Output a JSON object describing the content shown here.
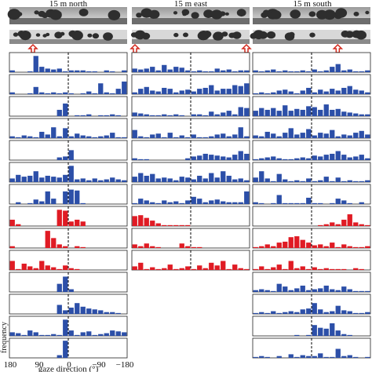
{
  "figure": {
    "columns": [
      "15 m north",
      "15 m east",
      "15 m south"
    ],
    "x_tick_labels": [
      "180",
      "90",
      "0",
      "−90",
      "−180"
    ],
    "xlabel": "gaze direction (°)",
    "ylabel": "frequency",
    "arrow_color": "#d42a1e",
    "blue_color": "#2c4fa8",
    "red_color": "#e01b24",
    "panorama_colors": {
      "sky_top": "#9a9a9a",
      "sky_bottom": "#e3e3e3",
      "canopy": "#2e2e2e",
      "ground": "#6d6d6d"
    }
  },
  "chart_data": {
    "type": "bar",
    "x_range": [
      180,
      -180
    ],
    "bins_per_panel": 20,
    "grid": false,
    "zero_line": "dashed vertical at 0°",
    "columns": [
      {
        "name": "15 m north",
        "arrows_deg": [
          108
        ],
        "panels": [
          {
            "color": "blue",
            "values": [
              0.1,
              0,
              0,
              0.05,
              0.9,
              0.3,
              0.2,
              0.15,
              0.2,
              0.05,
              0.1,
              0.1,
              0.1,
              0.05,
              0.05,
              0,
              0.1,
              0.05,
              0,
              0.1
            ]
          },
          {
            "color": "blue",
            "values": [
              0.1,
              0,
              0,
              0.05,
              0.4,
              0.1,
              0.05,
              0.1,
              0.05,
              0.1,
              0.05,
              0,
              0.05,
              0.15,
              0.05,
              0.6,
              0.1,
              0.05,
              0.3,
              0.7
            ]
          },
          {
            "color": "blue",
            "values": [
              0,
              0,
              0,
              0,
              0,
              0,
              0,
              0,
              0.35,
              0.7,
              0,
              0.05,
              0.05,
              0.1,
              0,
              0.05,
              0.05,
              0.1,
              0.05,
              0
            ]
          },
          {
            "color": "blue",
            "values": [
              0.1,
              0.05,
              0.15,
              0.1,
              0.05,
              0.35,
              0.2,
              0.6,
              0.1,
              0.55,
              0.1,
              0.25,
              0.15,
              0.1,
              0.05,
              0.1,
              0.15,
              0.3,
              0.05,
              0.05
            ]
          },
          {
            "color": "blue",
            "values": [
              0,
              0,
              0,
              0,
              0,
              0,
              0,
              0,
              0.15,
              0.2,
              0.55,
              0,
              0,
              0,
              0,
              0,
              0,
              0,
              0,
              0
            ]
          },
          {
            "color": "blue",
            "values": [
              0.2,
              0.4,
              0.3,
              0.35,
              0.6,
              0.25,
              0.35,
              0.3,
              0.25,
              0.4,
              0.9,
              0.15,
              0.2,
              0.1,
              0.2,
              0.1,
              0.15,
              0.25,
              0.15,
              0.1
            ]
          },
          {
            "color": "blue",
            "values": [
              0,
              0.1,
              0,
              0.05,
              0.25,
              0.15,
              0.7,
              0.3,
              0,
              0.7,
              0.8,
              0.75,
              0.05,
              0,
              0,
              0,
              0,
              0,
              0,
              0
            ]
          },
          {
            "color": "red",
            "values": [
              0.35,
              0.1,
              0,
              0,
              0,
              0,
              0,
              0,
              0.9,
              0.85,
              0.25,
              0.35,
              0.25,
              0,
              0,
              0,
              0,
              0,
              0,
              0
            ]
          },
          {
            "color": "red",
            "values": [
              0.1,
              0,
              0,
              0,
              0,
              0,
              0.95,
              0.55,
              0.2,
              0.1,
              0,
              0.1,
              0.05,
              0,
              0,
              0,
              0,
              0,
              0,
              0
            ]
          },
          {
            "color": "red",
            "values": [
              0.5,
              0.05,
              0.35,
              0.2,
              0.1,
              0.5,
              0.25,
              0.15,
              0.05,
              0.25,
              0.1,
              0.05,
              0,
              0,
              0,
              0,
              0,
              0,
              0,
              0
            ]
          },
          {
            "color": "blue",
            "values": [
              0,
              0,
              0,
              0,
              0,
              0,
              0,
              0,
              0.45,
              0.85,
              0.15,
              0,
              0,
              0,
              0,
              0,
              0,
              0,
              0,
              0
            ]
          },
          {
            "color": "blue",
            "values": [
              0,
              0,
              0,
              0,
              0,
              0,
              0,
              0,
              0.5,
              0.2,
              0.35,
              0.6,
              0.4,
              0.3,
              0.25,
              0.2,
              0.1,
              0.1,
              0.05,
              0
            ]
          },
          {
            "color": "blue",
            "values": [
              0.2,
              0.15,
              0.05,
              0.3,
              0.2,
              0.05,
              0.05,
              0.1,
              0.05,
              0.9,
              0.3,
              0.05,
              0.2,
              0.25,
              0.05,
              0.1,
              0.15,
              0.3,
              0.25,
              0.2
            ]
          },
          {
            "color": "blue",
            "values": [
              0,
              0,
              0,
              0,
              0,
              0,
              0,
              0,
              0.15,
              0.95,
              0,
              0,
              0,
              0,
              0,
              0,
              0,
              0,
              0,
              0
            ]
          }
        ]
      },
      {
        "name": "15 m east",
        "arrows_deg": [
          180,
          -180
        ],
        "panels": [
          {
            "color": "blue",
            "values": [
              0.2,
              0.15,
              0.2,
              0.3,
              0.1,
              0.4,
              0.15,
              0.3,
              0.25,
              0.1,
              0.05,
              0.1,
              0.05,
              0.05,
              0.2,
              0.1,
              0.15,
              0.05,
              0.1,
              0.1
            ]
          },
          {
            "color": "blue",
            "values": [
              0.1,
              0.3,
              0.4,
              0.2,
              0.15,
              0.35,
              0.3,
              0.1,
              0.2,
              0.25,
              0.15,
              0.3,
              0.35,
              0.5,
              0.2,
              0.3,
              0.3,
              0.5,
              0.45,
              0.6
            ]
          },
          {
            "color": "blue",
            "values": [
              0.2,
              0.15,
              0.1,
              0.05,
              0.05,
              0.1,
              0.05,
              0.1,
              0.05,
              0,
              0.1,
              0.1,
              0.05,
              0.25,
              0.1,
              0.2,
              0.3,
              0.1,
              0.5,
              0.45
            ]
          },
          {
            "color": "blue",
            "values": [
              0.45,
              0.1,
              0.05,
              0.2,
              0.25,
              0.05,
              0.3,
              0.05,
              0.15,
              0.05,
              0.2,
              0.05,
              0.05,
              0.1,
              0.2,
              0.25,
              0.1,
              0.2,
              0.6,
              0.1
            ]
          },
          {
            "color": "blue",
            "values": [
              0.1,
              0.05,
              0.05,
              0,
              0,
              0,
              0,
              0,
              0,
              0.1,
              0.2,
              0.25,
              0.35,
              0.3,
              0.25,
              0.2,
              0.15,
              0.3,
              0.5,
              0.35
            ]
          },
          {
            "color": "blue",
            "values": [
              0.3,
              0.5,
              0.35,
              0.45,
              0.2,
              0.25,
              0.2,
              0.1,
              0.3,
              0.25,
              0.15,
              0.35,
              0.2,
              0.5,
              0.25,
              0.6,
              0.35,
              0.15,
              0.2,
              0.1
            ]
          },
          {
            "color": "blue",
            "values": [
              0.05,
              0.3,
              0.2,
              0.1,
              0.05,
              0.2,
              0.1,
              0.15,
              0.05,
              0.2,
              0.4,
              0.3,
              0.1,
              0.2,
              0.25,
              0.15,
              0.1,
              0.1,
              0.1,
              0.7
            ]
          },
          {
            "color": "red",
            "values": [
              0.55,
              0.6,
              0.45,
              0.3,
              0.15,
              0.05,
              0.05,
              0.05,
              0.05,
              0.05,
              0,
              0,
              0,
              0,
              0,
              0,
              0,
              0,
              0,
              0
            ]
          },
          {
            "color": "red",
            "values": [
              0.2,
              0.1,
              0.25,
              0.1,
              0.05,
              0,
              0,
              0,
              0.25,
              0.1,
              0.05,
              0.05,
              0,
              0,
              0,
              0,
              0,
              0,
              0,
              0
            ]
          },
          {
            "color": "red",
            "values": [
              0.2,
              0.4,
              0.05,
              0.15,
              0.05,
              0.1,
              0.3,
              0.05,
              0.1,
              0.2,
              0.05,
              0.25,
              0.1,
              0.4,
              0.25,
              0.5,
              0.05,
              0.3,
              0.1,
              0.05
            ]
          }
        ]
      },
      {
        "name": "15 m south",
        "arrows_deg": [
          -80
        ],
        "panels": [
          {
            "color": "blue",
            "values": [
              0.1,
              0.05,
              0.1,
              0.15,
              0.05,
              0.1,
              0.05,
              0.05,
              0.1,
              0.05,
              0.15,
              0.05,
              0.1,
              0.3,
              0.45,
              0.1,
              0.15,
              0.05,
              0.05,
              0.1
            ]
          },
          {
            "color": "blue",
            "values": [
              0.05,
              0.1,
              0.05,
              0.1,
              0.2,
              0.25,
              0.15,
              0.05,
              0.2,
              0.35,
              0.1,
              0.25,
              0.15,
              0.3,
              0.2,
              0.35,
              0.45,
              0.25,
              0.2,
              0.1
            ]
          },
          {
            "color": "blue",
            "values": [
              0.3,
              0.45,
              0.35,
              0.45,
              0.3,
              0.6,
              0.3,
              0.4,
              0.35,
              0.55,
              0.5,
              0.35,
              0.65,
              0.35,
              0.4,
              0.25,
              0.2,
              0.15,
              0.1,
              0.1
            ]
          },
          {
            "color": "blue",
            "values": [
              0.15,
              0.1,
              0.35,
              0.25,
              0.1,
              0.3,
              0.55,
              0.2,
              0.3,
              0.5,
              0.15,
              0.3,
              0.25,
              0.45,
              0.1,
              0.2,
              0.15,
              0.3,
              0.4,
              0.2
            ]
          },
          {
            "color": "blue",
            "values": [
              0.05,
              0.1,
              0.15,
              0.2,
              0.1,
              0.05,
              0.05,
              0.1,
              0.15,
              0.1,
              0.25,
              0.2,
              0.3,
              0.35,
              0.5,
              0.3,
              0.15,
              0.2,
              0.3,
              0.1
            ]
          },
          {
            "color": "blue",
            "values": [
              0.25,
              0.6,
              0.2,
              0.05,
              0.45,
              0.15,
              0.05,
              0.1,
              0.05,
              0.2,
              0.05,
              0.1,
              0.3,
              0.05,
              0.25,
              0.05,
              0.1,
              0.05,
              0.05,
              0.1
            ]
          },
          {
            "color": "blue",
            "values": [
              0.1,
              0.05,
              0,
              0.05,
              0.5,
              0.05,
              0.05,
              0.05,
              0.05,
              0.35,
              0.05,
              0.05,
              0,
              0.05,
              0.3,
              0.2,
              0.05,
              0,
              0.1,
              0
            ]
          },
          {
            "color": "red",
            "values": [
              0,
              0,
              0,
              0,
              0,
              0,
              0,
              0,
              0,
              0,
              0,
              0.05,
              0.1,
              0.2,
              0.1,
              0.35,
              0.65,
              0.2,
              0.1,
              0.05
            ]
          },
          {
            "color": "red",
            "values": [
              0.05,
              0.1,
              0.2,
              0.1,
              0.3,
              0.35,
              0.6,
              0.65,
              0.45,
              0.3,
              0.15,
              0.2,
              0.1,
              0.3,
              0.05,
              0.2,
              0.1,
              0.05,
              0.05,
              0.1
            ]
          },
          {
            "color": "red",
            "values": [
              0.05,
              0.2,
              0.05,
              0.15,
              0.3,
              0.05,
              0.5,
              0.1,
              0.2,
              0.05,
              0.15,
              0.05,
              0.1,
              0.05,
              0.05,
              0.05,
              0,
              0.1,
              0.05,
              0
            ]
          },
          {
            "color": "blue",
            "values": [
              0.1,
              0.15,
              0.1,
              0.05,
              0.45,
              0.3,
              0.1,
              0.2,
              0.35,
              0.1,
              0.15,
              0.2,
              0.35,
              0.15,
              0.1,
              0.3,
              0.15,
              0.05,
              0.05,
              0.05
            ]
          },
          {
            "color": "blue",
            "values": [
              0.05,
              0.1,
              0.05,
              0.15,
              0.05,
              0.1,
              0.15,
              0.1,
              0.25,
              0.3,
              0.6,
              0.25,
              0.1,
              0.15,
              0.45,
              0.2,
              0.15,
              0.05,
              0.05,
              0.1
            ]
          },
          {
            "color": "blue",
            "values": [
              0,
              0,
              0,
              0,
              0,
              0,
              0,
              0.05,
              0,
              0.05,
              0.6,
              0.45,
              0.4,
              0.7,
              0.3,
              0.1,
              0.05,
              0,
              0,
              0
            ]
          },
          {
            "color": "blue",
            "values": [
              0.05,
              0.1,
              0.05,
              0,
              0.1,
              0,
              0.2,
              0.05,
              0.15,
              0.1,
              0.1,
              0.25,
              0.05,
              0.05,
              0.5,
              0.1,
              0.15,
              0.05,
              0,
              0.05
            ]
          }
        ]
      }
    ]
  }
}
